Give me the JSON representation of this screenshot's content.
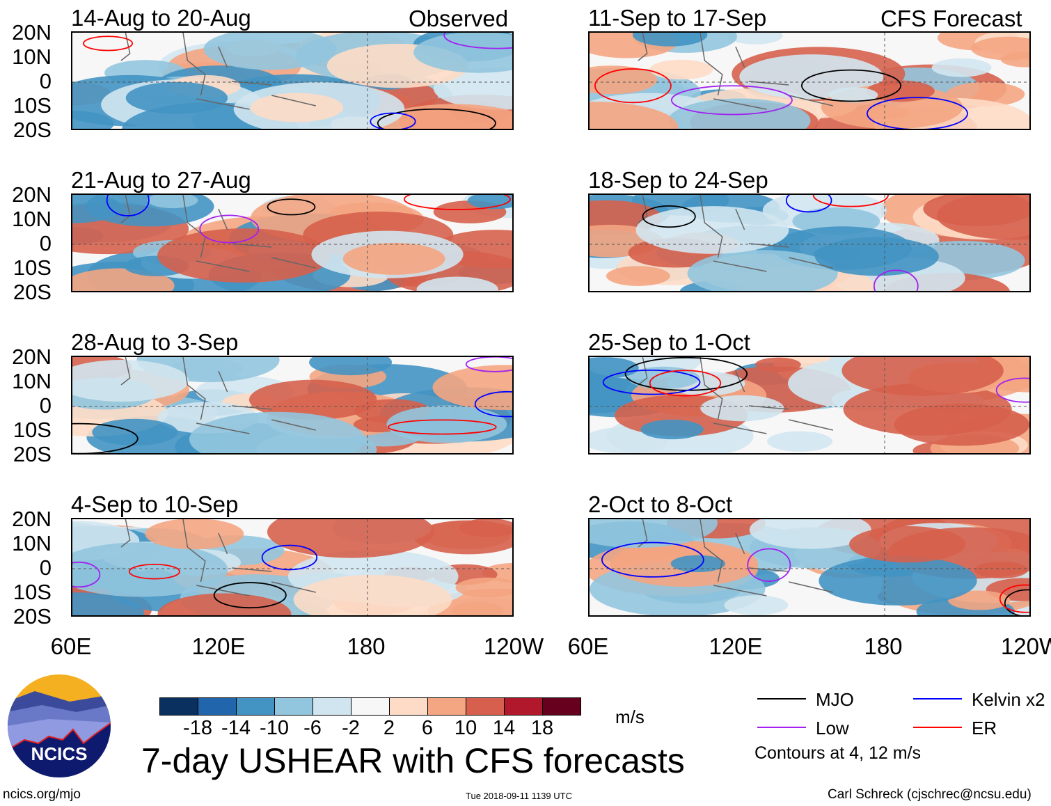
{
  "header": {
    "left_label": "Observed",
    "right_label": "CFS Forecast"
  },
  "panels_left": [
    "14-Aug to 20-Aug",
    "21-Aug to 27-Aug",
    "28-Aug to 3-Sep",
    "4-Sep to 10-Sep"
  ],
  "panels_right": [
    "11-Sep to 17-Sep",
    "18-Sep to 24-Sep",
    "25-Sep to 1-Oct",
    "2-Oct to 8-Oct"
  ],
  "lat_labels": [
    "20N",
    "10N",
    "0",
    "10S",
    "20S"
  ],
  "lon_labels": [
    "60E",
    "120E",
    "180",
    "120W"
  ],
  "colorbar": {
    "colors": [
      "#0a3060",
      "#2166ac",
      "#4393c3",
      "#92c5de",
      "#d1e5f0",
      "#f7f7f7",
      "#fddbc7",
      "#f4a582",
      "#d6604d",
      "#b2182b",
      "#67001f"
    ],
    "ticks": [
      "-18",
      "-14",
      "-10",
      "-6",
      "-2",
      "2",
      "6",
      "10",
      "14",
      "18"
    ],
    "units": "m/s"
  },
  "title": "7-day USHEAR with CFS forecasts",
  "legend": {
    "items": [
      {
        "label": "MJO",
        "color": "#000000"
      },
      {
        "label": "Low",
        "color": "#a020f0"
      },
      {
        "label": "Kelvin x2",
        "color": "#0000ff"
      },
      {
        "label": "ER",
        "color": "#ff0000"
      }
    ],
    "note": "Contours at 4, 12 m/s"
  },
  "logo": {
    "text": "NCICS"
  },
  "footer": {
    "url": "ncics.org/mjo",
    "timestamp": "Tue 2018-09-11 1139 UTC",
    "credit": "Carl Schreck (cjschrec@ncsu.edu)"
  }
}
